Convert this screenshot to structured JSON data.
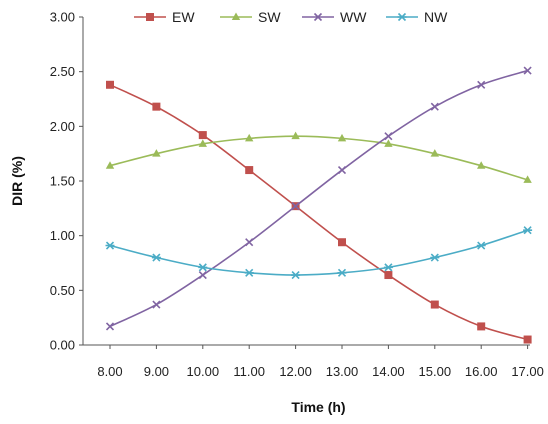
{
  "chart_data": {
    "type": "line",
    "xlabel": "Time (h)",
    "ylabel": "DIR (%)",
    "x": [
      "8.00",
      "9.00",
      "10.00",
      "11.00",
      "12.00",
      "13.00",
      "14.00",
      "15.00",
      "16.00",
      "17.00"
    ],
    "yticks": [
      "0.00",
      "0.50",
      "1.00",
      "1.50",
      "2.00",
      "2.50",
      "3.00"
    ],
    "ylim": [
      0,
      3
    ],
    "grid": false,
    "legend_position": "top",
    "series": [
      {
        "name": "EW",
        "color": "#c0504d",
        "marker": "square",
        "values": [
          2.38,
          2.18,
          1.92,
          1.6,
          1.27,
          0.94,
          0.64,
          0.37,
          0.17,
          0.05
        ]
      },
      {
        "name": "SW",
        "color": "#9bbb59",
        "marker": "triangle",
        "values": [
          1.64,
          1.75,
          1.84,
          1.89,
          1.91,
          1.89,
          1.84,
          1.75,
          1.64,
          1.51
        ]
      },
      {
        "name": "WW",
        "color": "#8064a2",
        "marker": "x",
        "values": [
          0.17,
          0.37,
          0.64,
          0.94,
          1.27,
          1.6,
          1.91,
          2.18,
          2.38,
          2.51
        ]
      },
      {
        "name": "NW",
        "color": "#4bacc6",
        "marker": "star",
        "values": [
          0.91,
          0.8,
          0.71,
          0.66,
          0.64,
          0.66,
          0.71,
          0.8,
          0.91,
          1.05
        ]
      }
    ]
  }
}
